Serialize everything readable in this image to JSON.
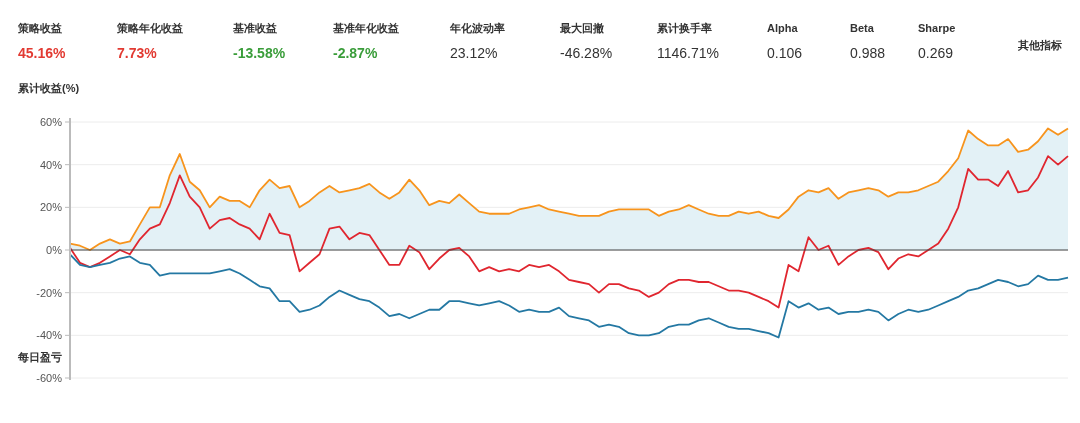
{
  "chart_data": [
    {
      "type": "other",
      "annotations": [
        "策略收益",
        "45.16%",
        "策略年化收益",
        "7.73%",
        "基准收益",
        "-13.58%",
        "基准年化收益",
        "-2.87%",
        "年化波动率",
        "23.12%",
        "最大回撤",
        "-46.28%",
        "累计换手率",
        "1146.71%",
        "Alpha",
        "0.106",
        "Beta",
        "0.988",
        "Sharpe",
        "0.269",
        "其他指标"
      ],
      "colors": [
        "#e23a32",
        "#e23a32",
        "#3a9d3a",
        "#3a9d3a",
        "#333333",
        "#333333",
        "#333333",
        "#333333",
        "#333333",
        "#333333"
      ]
    },
    {
      "type": "line",
      "ylabel": "累计收益(%)",
      "annotations": [
        "每日盈亏"
      ],
      "categories": [
        null,
        null,
        null,
        null,
        null,
        null,
        null,
        null,
        null,
        null,
        null,
        null,
        null,
        null,
        null,
        null,
        null,
        null,
        null,
        null,
        null,
        null,
        null,
        null,
        null,
        null,
        null,
        null,
        null,
        null,
        null,
        null,
        null,
        null,
        null,
        null,
        null,
        null,
        null,
        null,
        null,
        null,
        null,
        null,
        null,
        null,
        null,
        null,
        null,
        null,
        null,
        null,
        null,
        null,
        null,
        null,
        null,
        null,
        null,
        null,
        null,
        null,
        null,
        null,
        null,
        null,
        null,
        null,
        null,
        null,
        null,
        null,
        null,
        null,
        null,
        null,
        null,
        null,
        null,
        null,
        null,
        null,
        null,
        null,
        null,
        null,
        null,
        null,
        null,
        null,
        null,
        null,
        null,
        null,
        null,
        null,
        null,
        null,
        null,
        null,
        null
      ],
      "series": [
        {
          "type": "area",
          "color": "#f7941d",
          "values": [
            3,
            2,
            0,
            3,
            5,
            3,
            4,
            12,
            20,
            20,
            35,
            45,
            32,
            28,
            20,
            25,
            23,
            23,
            20,
            28,
            33,
            29,
            30,
            20,
            23,
            27,
            30,
            27,
            28,
            29,
            31,
            27,
            24,
            27,
            33,
            28,
            21,
            23,
            22,
            26,
            22,
            18,
            17,
            17,
            17,
            19,
            20,
            21,
            19,
            18,
            17,
            16,
            16,
            16,
            18,
            19,
            19,
            19,
            19,
            16,
            18,
            19,
            21,
            19,
            17,
            16,
            16,
            18,
            17,
            18,
            16,
            15,
            19,
            25,
            28,
            27,
            29,
            24,
            27,
            28,
            29,
            28,
            25,
            27,
            27,
            28,
            30,
            32,
            37,
            43,
            56,
            52,
            49,
            49,
            52,
            46,
            47,
            51,
            57,
            54,
            57
          ]
        },
        {
          "color": "#e0262f",
          "values": [
            1,
            -6,
            -8,
            -6,
            -3,
            0,
            -2,
            5,
            10,
            12,
            22,
            35,
            25,
            20,
            10,
            14,
            15,
            12,
            10,
            5,
            17,
            8,
            7,
            -10,
            -6,
            -2,
            10,
            11,
            5,
            8,
            7,
            0,
            -7,
            -7,
            2,
            -1,
            -9,
            -4,
            0,
            1,
            -3,
            -10,
            -8,
            -10,
            -9,
            -10,
            -7,
            -8,
            -7,
            -10,
            -14,
            -15,
            -16,
            -20,
            -16,
            -16,
            -18,
            -19,
            -22,
            -20,
            -16,
            -14,
            -14,
            -15,
            -15,
            -17,
            -19,
            -19,
            -20,
            -22,
            -24,
            -27,
            -7,
            -10,
            6,
            0,
            2,
            -7,
            -3,
            0,
            1,
            -1,
            -9,
            -4,
            -2,
            -3,
            0,
            3,
            10,
            20,
            38,
            33,
            33,
            30,
            37,
            27,
            28,
            34,
            44,
            40,
            44
          ]
        },
        {
          "color": "#2478a3",
          "values": [
            -2,
            -7,
            -8,
            -7,
            -6,
            -4,
            -3,
            -6,
            -7,
            -12,
            -11,
            -11,
            -11,
            -11,
            -11,
            -10,
            -9,
            -11,
            -14,
            -17,
            -18,
            -24,
            -24,
            -29,
            -28,
            -26,
            -22,
            -19,
            -21,
            -23,
            -24,
            -27,
            -31,
            -30,
            -32,
            -30,
            -28,
            -28,
            -24,
            -24,
            -25,
            -26,
            -25,
            -24,
            -26,
            -29,
            -28,
            -29,
            -29,
            -27,
            -31,
            -32,
            -33,
            -36,
            -35,
            -36,
            -39,
            -40,
            -40,
            -39,
            -36,
            -35,
            -35,
            -33,
            -32,
            -34,
            -36,
            -37,
            -37,
            -38,
            -39,
            -41,
            -24,
            -27,
            -25,
            -28,
            -27,
            -30,
            -29,
            -29,
            -28,
            -29,
            -33,
            -30,
            -28,
            -29,
            -28,
            -26,
            -24,
            -22,
            -19,
            -18,
            -16,
            -14,
            -15,
            -17,
            -16,
            -12,
            -14,
            -14,
            -13
          ]
        }
      ],
      "ylim": [
        -60,
        60
      ],
      "yticks": [
        {
          "value": -60,
          "label": "-60%"
        },
        {
          "value": -40,
          "label": "-40%"
        },
        {
          "value": -20,
          "label": "-20%"
        },
        {
          "value": 0,
          "label": "0%"
        },
        {
          "value": 20,
          "label": "20%"
        },
        {
          "value": 40,
          "label": "40%"
        },
        {
          "value": 60,
          "label": "60%"
        }
      ],
      "grid": "y",
      "ref_lines": [
        {
          "axis": "y",
          "value": 0,
          "color": "#444444"
        }
      ]
    }
  ]
}
